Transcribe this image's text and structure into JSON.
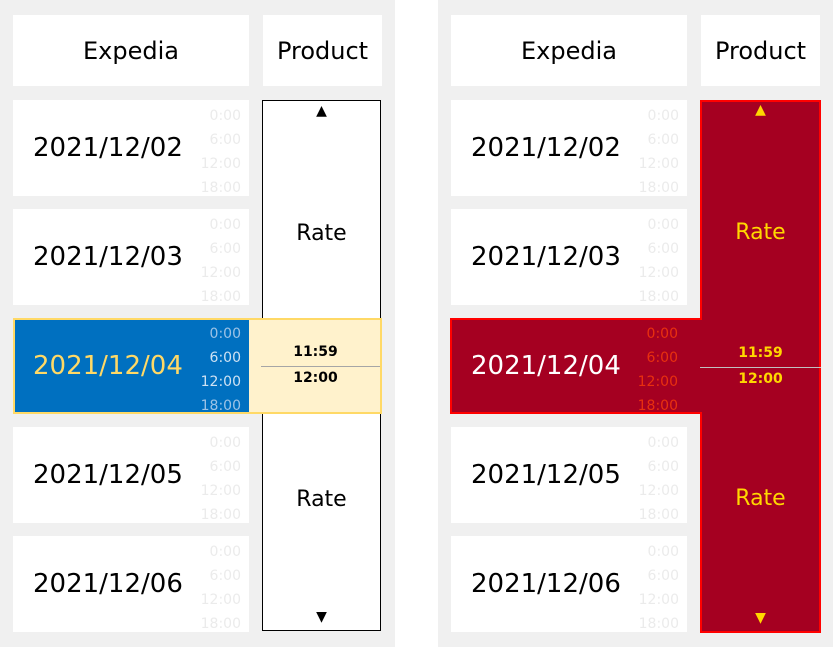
{
  "left": {
    "header_site": "Expedia",
    "header_product": "Product",
    "rows": [
      {
        "date": "2021/12/02",
        "times": [
          "0:00",
          "6:00",
          "12:00",
          "18:00"
        ]
      },
      {
        "date": "2021/12/03",
        "times": [
          "0:00",
          "6:00",
          "12:00",
          "18:00"
        ]
      },
      {
        "date": "2021/12/04",
        "times": [
          "0:00",
          "6:00",
          "12:00",
          "18:00"
        ]
      },
      {
        "date": "2021/12/05",
        "times": [
          "0:00",
          "6:00",
          "12:00",
          "18:00"
        ]
      },
      {
        "date": "2021/12/06",
        "times": [
          "0:00",
          "6:00",
          "12:00",
          "18:00"
        ]
      }
    ],
    "selected_index": 2,
    "product": {
      "rate_top": "Rate",
      "rate_bottom": "Rate",
      "time_end": "11:59",
      "time_start": "12:00",
      "arrow_up": "▲",
      "arrow_down": "▼"
    }
  },
  "right": {
    "header_site": "Expedia",
    "header_product": "Product",
    "rows": [
      {
        "date": "2021/12/02",
        "times": [
          "0:00",
          "6:00",
          "12:00",
          "18:00"
        ]
      },
      {
        "date": "2021/12/03",
        "times": [
          "0:00",
          "6:00",
          "12:00",
          "18:00"
        ]
      },
      {
        "date": "2021/12/04",
        "times": [
          "0:00",
          "6:00",
          "12:00",
          "18:00"
        ]
      },
      {
        "date": "2021/12/05",
        "times": [
          "0:00",
          "6:00",
          "12:00",
          "18:00"
        ]
      },
      {
        "date": "2021/12/06",
        "times": [
          "0:00",
          "6:00",
          "12:00",
          "18:00"
        ]
      }
    ],
    "selected_index": 2,
    "product": {
      "rate_top": "Rate",
      "rate_bottom": "Rate",
      "time_end": "11:59",
      "time_start": "12:00",
      "arrow_up": "▲",
      "arrow_down": "▼"
    }
  },
  "colors": {
    "left_selected_bg": "#0070c0",
    "left_selected_date": "#ffd966",
    "left_band_bg": "#fff2cc",
    "right_selected_bg": "#a50021",
    "right_border": "#ff0000",
    "right_accent": "#ffd700"
  }
}
